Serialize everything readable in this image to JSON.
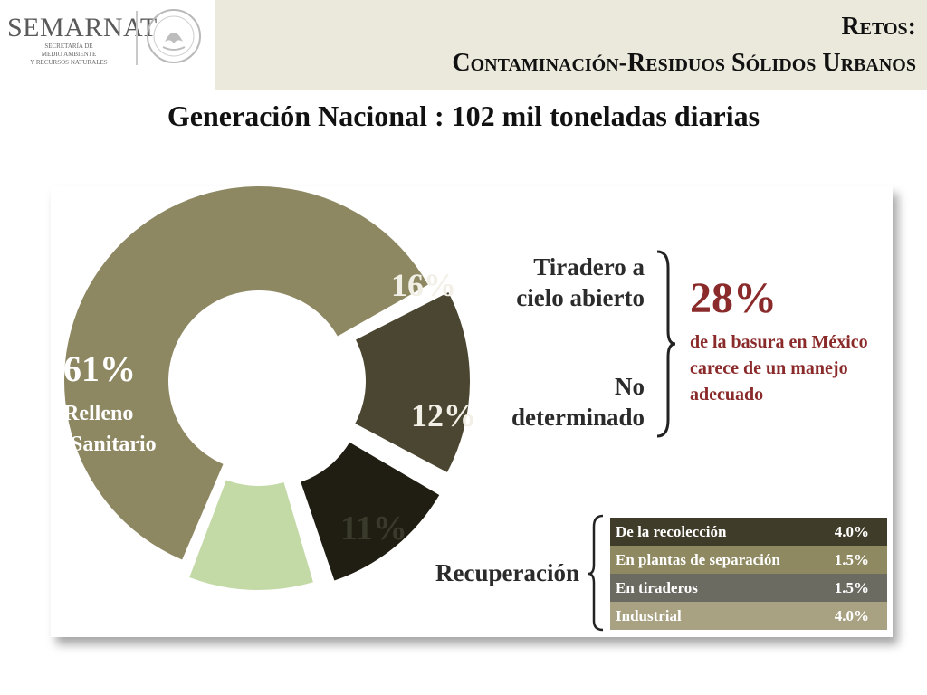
{
  "header": {
    "logo": {
      "name": "SEMARNAT",
      "subtitle": [
        "SECRETARÍA DE",
        "MEDIO AMBIENTE",
        "Y RECURSOS NATURALES"
      ]
    },
    "title_line1": "Retos:",
    "title_line2": "Contaminación-Residuos Sólidos Urbanos"
  },
  "subtitle": "Generación Nacional : 102 mil toneladas diarias",
  "chart_data": {
    "type": "pie",
    "title": "",
    "slices": [
      {
        "label": "Relleno Sanitario",
        "value": 61,
        "display": "61%",
        "color": "#8d8862"
      },
      {
        "label": "Tiradero a cielo abierto",
        "value": 16,
        "display": "16%",
        "color": "#4b4631"
      },
      {
        "label": "No determinado",
        "value": 12,
        "display": "12%",
        "color": "#201d12"
      },
      {
        "label": "Recuperación",
        "value": 11,
        "display": "11%",
        "color": "#c3d9a6"
      }
    ],
    "annotations": {
      "group_total": "28%",
      "group_note": "de la basura en México carece de un manejo adecuado"
    },
    "recovery_breakdown": [
      {
        "label": "De la recolección",
        "value": "4.0%",
        "color": "#403c2a"
      },
      {
        "label": "En plantas de separación",
        "value": "1.5%",
        "color": "#8e8960"
      },
      {
        "label": "En tiraderos",
        "value": "1.5%",
        "color": "#6b6b62"
      },
      {
        "label": "Industrial",
        "value": "4.0%",
        "color": "#a8a283"
      }
    ]
  },
  "labels": {
    "main_pct": "61%",
    "main_label_1": "Relleno",
    "main_label_2": "Sanitario",
    "tiradero_1": "Tiradero  a",
    "tiradero_2": "cielo abierto",
    "nodet_1": "No",
    "nodet_2": "determinado",
    "recuperacion": "Recuperación"
  }
}
